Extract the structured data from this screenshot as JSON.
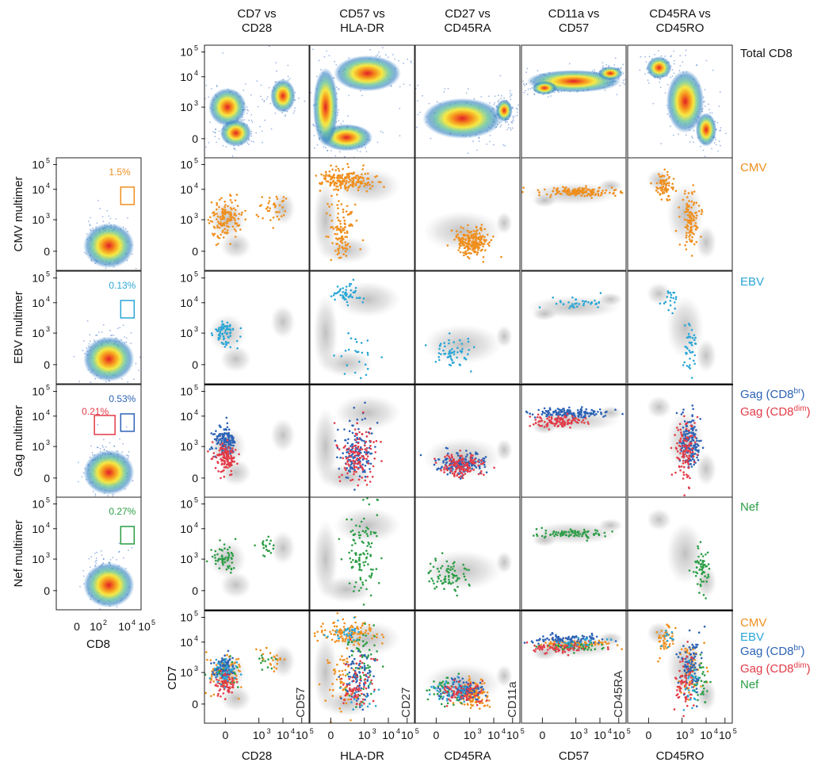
{
  "column_titles": [
    [
      "CD7 vs",
      "CD28"
    ],
    [
      "CD57 vs",
      "HLA-DR"
    ],
    [
      "CD27 vs",
      "CD45RA"
    ],
    [
      "CD11a vs",
      "CD57"
    ],
    [
      "CD45RA vs",
      "CD45RO"
    ]
  ],
  "row_labels": [
    {
      "text": "Total CD8",
      "color": "#111111"
    },
    {
      "text": "CMV",
      "color": "#ef8f1e"
    },
    {
      "text": "EBV",
      "color": "#2aa6d6"
    },
    {
      "text": "Gag (CD8br) / Gag (CD8dim)",
      "color": "#2d63b6"
    },
    {
      "text": "Nef",
      "color": "#2a9d45"
    }
  ],
  "gag_labels": {
    "br": {
      "main": "Gag (CD8",
      "sup": "br",
      "end": ")",
      "color": "#2d63b6"
    },
    "dim": {
      "main": "Gag (CD8",
      "sup": "dim",
      "end": ")",
      "color": "#e23b47"
    }
  },
  "combined_legend": [
    "CMV",
    "EBV",
    "Gag (CD8br)",
    "Gag (CD8dim)",
    "Nef"
  ],
  "left_panels": [
    {
      "ylabel": "CMV multimer",
      "pct": "1.5%",
      "color": "#ef8f1e"
    },
    {
      "ylabel": "EBV multimer",
      "pct": "0.13%",
      "color": "#2aa6d6"
    },
    {
      "ylabel": "Gag multimer",
      "pct": "0.53%",
      "pct2": "0.21%",
      "color": "#2d63b6",
      "color2": "#e23b47"
    },
    {
      "ylabel": "Nef multimer",
      "pct": "0.27%",
      "color": "#2a9d45"
    }
  ],
  "left_xlabel": "CD8",
  "y_ticks": [
    "10^5",
    "10^4",
    "10^3",
    "0"
  ],
  "x_ticks": [
    "0",
    "10^3",
    "10^4",
    "10^5"
  ],
  "bottom_xlabels": [
    "CD28",
    "HLA-DR",
    "CD45RA",
    "CD57",
    "CD45RO"
  ],
  "bottom_ylabel": "CD7",
  "inner_ylabels": [
    "CD57",
    "CD27",
    "CD11a",
    "CD45RA"
  ],
  "colors": {
    "cmv": "#ef8f1e",
    "ebv": "#2aa6d6",
    "gagbr": "#2d63b6",
    "gagdim": "#e23b47",
    "nef": "#2a9d45",
    "grey": "#9a9a9a"
  },
  "chart_data": {
    "type": "scatter",
    "description_scale": "biexponential flow cytometry axes with ticks 0, 10^3, 10^4, 10^5",
    "percentages": {
      "CMV": 1.5,
      "EBV": 0.13,
      "Gag CD8br": 0.53,
      "Gag CD8dim": 0.21,
      "Nef": 0.27
    },
    "series": [
      {
        "name": "Total CD8"
      },
      {
        "name": "CMV"
      },
      {
        "name": "EBV"
      },
      {
        "name": "Gag (CD8br)"
      },
      {
        "name": "Gag (CD8dim)"
      },
      {
        "name": "Nef"
      }
    ]
  }
}
